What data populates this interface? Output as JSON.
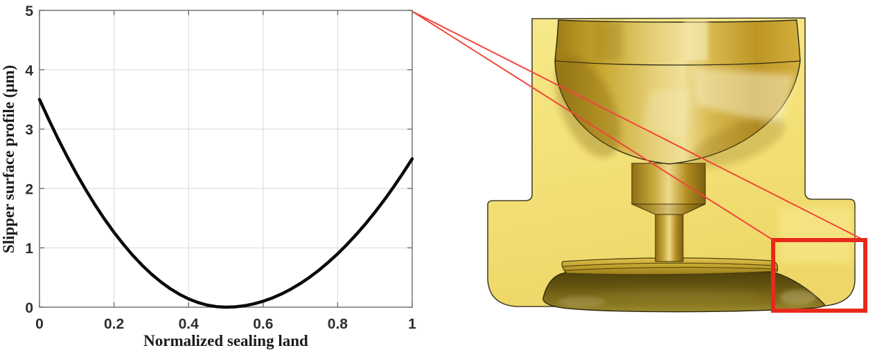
{
  "figure": {
    "kind": "journal-figure",
    "description": "Slipper surface profile plot with zoom callout to CAD cross-section of piston ball and slipper foot",
    "background": "#ffffff"
  },
  "chart_data": {
    "type": "line",
    "title": "",
    "xlabel": "Normalized sealing land",
    "ylabel": "Slipper surface profile (μm)",
    "xlim": [
      0,
      1
    ],
    "ylim": [
      0,
      5
    ],
    "xticks": [
      0,
      0.2,
      0.4,
      0.6,
      0.8,
      1
    ],
    "xtick_labels": [
      "0",
      "0.2",
      "0.4",
      "0.6",
      "0.8",
      "1"
    ],
    "yticks": [
      0,
      1,
      2,
      3,
      4,
      5
    ],
    "ytick_labels": [
      "0",
      "1",
      "2",
      "3",
      "4",
      "5"
    ],
    "grid": true,
    "legend": "none",
    "line_color": "#0a0a0a",
    "line_width": 4.5,
    "series": [
      {
        "name": "slipper surface profile",
        "x": [
          0.0,
          0.025,
          0.05,
          0.075,
          0.1,
          0.125,
          0.15,
          0.175,
          0.2,
          0.225,
          0.25,
          0.275,
          0.3,
          0.325,
          0.35,
          0.375,
          0.4,
          0.425,
          0.45,
          0.475,
          0.5,
          0.525,
          0.55,
          0.575,
          0.6,
          0.625,
          0.65,
          0.675,
          0.7,
          0.725,
          0.75,
          0.775,
          0.8,
          0.825,
          0.85,
          0.875,
          0.9,
          0.925,
          0.95,
          0.975,
          1.0
        ],
        "y": [
          3.5,
          3.159,
          2.835,
          2.529,
          2.24,
          1.969,
          1.715,
          1.479,
          1.26,
          1.059,
          0.875,
          0.709,
          0.56,
          0.429,
          0.315,
          0.219,
          0.14,
          0.079,
          0.035,
          0.009,
          0.0,
          0.006,
          0.025,
          0.056,
          0.1,
          0.156,
          0.225,
          0.306,
          0.4,
          0.506,
          0.625,
          0.756,
          0.9,
          1.056,
          1.225,
          1.406,
          1.6,
          1.806,
          2.025,
          2.256,
          2.5
        ]
      }
    ],
    "notes": "Parabolic crown profile: 3.5 um at inner edge, 0 at mid-land, 2.5 um at outer edge"
  },
  "cad_render": {
    "label": "Sectioned CAD render of piston ball joint and slipper",
    "highlighted_region": "slipper sealing land (outer foot edge)",
    "palette": {
      "body_cut_face": "#f4e279",
      "body_face_bright": "#f9ec92",
      "gold_dark": "#8a6c14",
      "gold_mid": "#c9a42e",
      "gold_bright": "#f2e49c",
      "bowl_dark": "#5c4d10",
      "outline": "#3c3520"
    }
  },
  "annotation": {
    "type": "zoom-callout",
    "color": "#e72a1b",
    "line_color": "#f0463a",
    "links": "chart plot corner to highlighted slipper land rectangle"
  },
  "axes_style": {
    "box_color": "#7d7d7d",
    "grid_color": "#dedede",
    "tick_label_color": "#2e2e2e"
  }
}
